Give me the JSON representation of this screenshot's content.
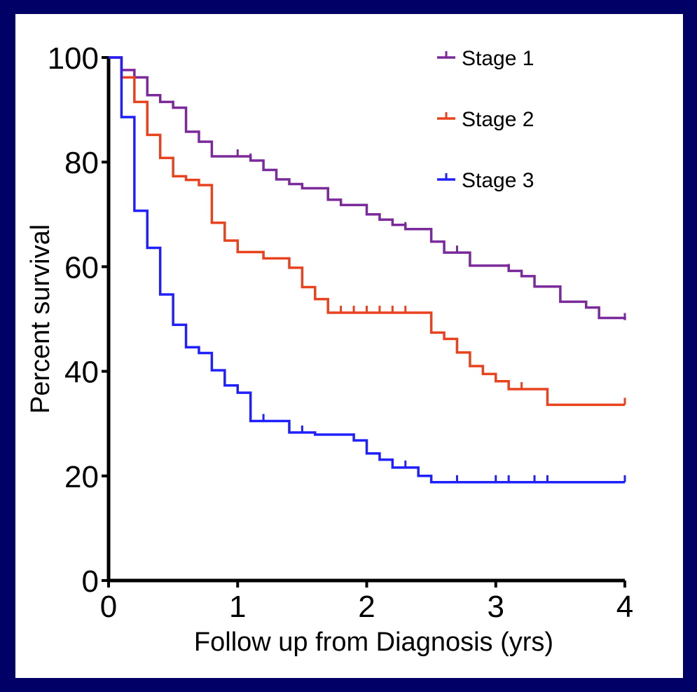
{
  "chart_data": {
    "type": "line",
    "step": true,
    "title": "",
    "xlabel": "Follow up from Diagnosis (yrs)",
    "ylabel": "Percent survival",
    "xlim": [
      0,
      4
    ],
    "ylim": [
      0,
      100
    ],
    "xticks": [
      0,
      1,
      2,
      3,
      4
    ],
    "yticks": [
      0,
      20,
      40,
      60,
      80,
      100
    ],
    "grid": false,
    "legend_position": "top-right",
    "series": [
      {
        "name": "Stage 1",
        "color": "#7b2a9b",
        "x": [
          0,
          0.1,
          0.2,
          0.3,
          0.4,
          0.5,
          0.6,
          0.7,
          0.8,
          0.9,
          1.1,
          1.2,
          1.3,
          1.4,
          1.5,
          1.7,
          1.8,
          2.0,
          2.1,
          2.2,
          2.3,
          2.5,
          2.6,
          2.8,
          3.1,
          3.2,
          3.3,
          3.4,
          3.5,
          3.7,
          3.8,
          4.0
        ],
        "y": [
          100,
          97.6,
          96.2,
          92.8,
          91.5,
          90.4,
          85.8,
          83.9,
          81.1,
          81.1,
          80.3,
          78.5,
          76.7,
          75.8,
          75,
          72.8,
          71.8,
          70,
          69,
          68,
          67.2,
          64.8,
          62.7,
          60.2,
          59.2,
          58.2,
          56.2,
          56.2,
          53.3,
          52.2,
          50.2,
          49.8
        ],
        "censored_x": [
          0.2,
          1.0,
          1.1,
          2.3,
          2.7,
          2.8,
          3.1,
          3.3,
          3.5,
          4.0
        ]
      },
      {
        "name": "Stage 2",
        "color": "#e8431e",
        "x": [
          0,
          0.1,
          0.2,
          0.3,
          0.4,
          0.5,
          0.6,
          0.7,
          0.8,
          0.9,
          1.0,
          1.2,
          1.3,
          1.4,
          1.5,
          1.6,
          1.7,
          2.4,
          2.5,
          2.6,
          2.7,
          2.8,
          2.9,
          3.0,
          3.1,
          3.4,
          4.0
        ],
        "y": [
          100,
          96.2,
          91.5,
          85.2,
          80.8,
          77.3,
          76.6,
          75.6,
          68.4,
          65,
          62.8,
          61.6,
          61.6,
          59.8,
          56.1,
          53.8,
          51.2,
          51.2,
          47.4,
          46.2,
          43.6,
          41,
          39.5,
          38.1,
          36.6,
          33.6,
          33.6
        ],
        "censored_x": [
          1.2,
          1.8,
          1.9,
          2.0,
          2.1,
          2.2,
          2.3,
          2.7,
          3.2,
          4.0
        ]
      },
      {
        "name": "Stage 3",
        "color": "#2020ff",
        "x": [
          0,
          0.1,
          0.2,
          0.3,
          0.4,
          0.5,
          0.6,
          0.7,
          0.8,
          0.9,
          1.0,
          1.1,
          1.3,
          1.4,
          1.6,
          1.9,
          2.0,
          2.1,
          2.2,
          2.3,
          2.4,
          2.5,
          4.0
        ],
        "y": [
          100,
          88.6,
          70.7,
          63.6,
          54.7,
          48.9,
          44.6,
          43.5,
          40.2,
          37.3,
          35.9,
          30.5,
          30.5,
          28.3,
          27.9,
          26.8,
          24.3,
          23.1,
          21.6,
          21.6,
          20,
          18.8,
          18.8
        ],
        "censored_x": [
          1.2,
          1.5,
          1.9,
          2.3,
          2.7,
          3.0,
          3.1,
          3.3,
          3.4,
          4.0
        ]
      }
    ]
  }
}
